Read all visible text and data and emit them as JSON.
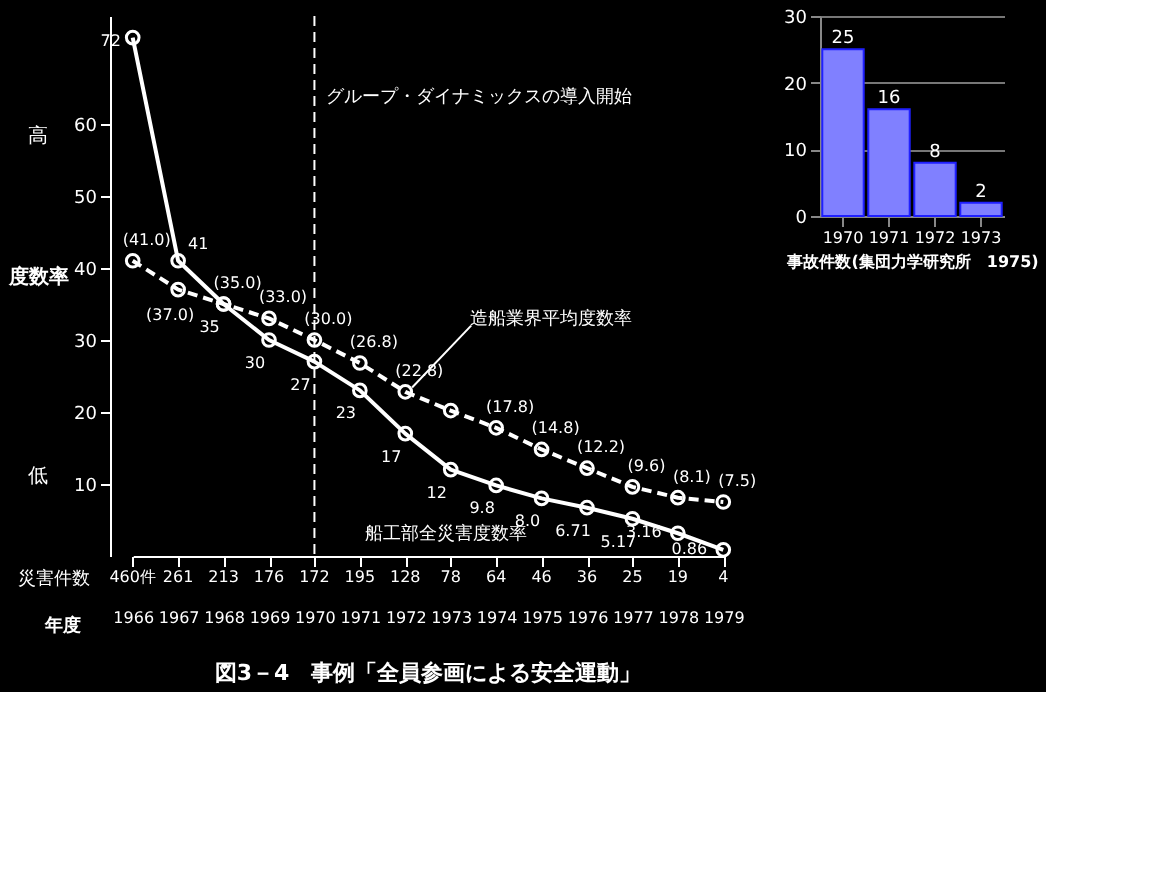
{
  "chart_data": [
    {
      "type": "line",
      "title": "図3－4　事例「全員参画による安全運動」",
      "ylabel": "度数率",
      "xlabel": "年度",
      "categories": [
        "1966",
        "1967",
        "1968",
        "1969",
        "1970",
        "1971",
        "1972",
        "1973",
        "1974",
        "1975",
        "1976",
        "1977",
        "1978",
        "1979"
      ],
      "series": [
        {
          "name": "船工部全災害度数率",
          "color": "#ffffff",
          "line_style": "solid",
          "values": [
            72,
            41,
            35,
            30,
            27,
            23,
            17,
            12,
            9.8,
            8.0,
            6.71,
            5.17,
            3.16,
            0.86
          ],
          "value_labels": [
            "72",
            "41",
            "35",
            "30",
            "27",
            "23",
            "17",
            "12",
            "9.8",
            "8.0",
            "6.71",
            "5.17",
            "3.16",
            "0.86"
          ]
        },
        {
          "name": "造船業界平均度数率",
          "color": "#ffffff",
          "line_style": "dashed",
          "values": [
            41,
            37,
            35,
            33,
            30,
            26.8,
            22.8,
            20.2,
            17.8,
            14.8,
            12.2,
            9.6,
            8.1,
            7.5
          ],
          "value_labels": [
            "(41.0)",
            "(37.0)",
            "(35.0)",
            "(33.0)",
            "(30.0)",
            "(26.8)",
            "(22.8)",
            null,
            "(17.8)",
            "(14.8)",
            "(12.2)",
            "(9.6)",
            "(8.1)",
            "(7.5)"
          ]
        }
      ],
      "ylim": [
        0,
        75
      ],
      "yticks": [
        10,
        20,
        30,
        40,
        50,
        60
      ],
      "marker": "circle",
      "grid": false,
      "ref_lines": [
        {
          "axis": "x",
          "value": "1970",
          "label": "グループ・ダイナミックスの導入開始",
          "line_style": "dashed",
          "color": "#ffffff"
        }
      ],
      "annotations": [
        "災害件数",
        "高",
        "低",
        "460件",
        "261",
        "213",
        "176",
        "172",
        "195",
        "128",
        "78",
        "64",
        "46",
        "36",
        "25",
        "19",
        "4"
      ]
    },
    {
      "type": "bar",
      "xlabel": "事故件数(集団力学研究所　1975)",
      "categories": [
        "1970",
        "1971",
        "1972",
        "1973"
      ],
      "values": [
        25,
        16,
        8,
        2
      ],
      "color": "#8080ff",
      "ylim": [
        0,
        30
      ],
      "yticks": [
        0,
        10,
        20,
        30
      ],
      "grid": "y",
      "data_labels": true
    }
  ]
}
